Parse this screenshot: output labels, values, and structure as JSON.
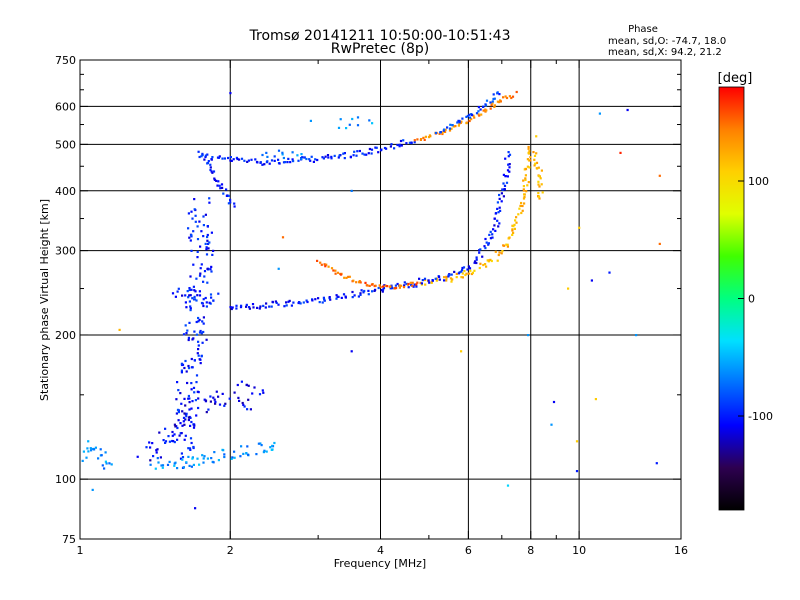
{
  "chart_data": {
    "type": "scatter",
    "title": "Tromsø 20141211 10:50:00-10:51:43",
    "subtitle": "RwPretec (8p)",
    "xlabel": "Frequency [MHz]",
    "ylabel": "Stationary phase Virtual Height [km]",
    "x_scale": "log",
    "y_scale": "log",
    "xlim": [
      1,
      16
    ],
    "ylim": [
      75,
      750
    ],
    "x_ticks": [
      1,
      2,
      4,
      6,
      8,
      10,
      16
    ],
    "x_tick_labels": [
      "1",
      "2",
      "4",
      "6",
      "8",
      "10",
      "16"
    ],
    "x_minor_ticks": [
      3,
      5,
      7,
      9
    ],
    "y_ticks": [
      75,
      100,
      200,
      300,
      400,
      500,
      600,
      750
    ],
    "y_tick_labels": [
      "75",
      "100",
      "200",
      "300",
      "400",
      "500",
      "600",
      "750"
    ],
    "y_minor_ticks": [
      150,
      250,
      350,
      450,
      550,
      650,
      700
    ],
    "grid": true,
    "stats": {
      "heading": "Phase",
      "line_o": "mean, sd,O: -74.7, 18.0",
      "line_x": "mean, sd,X:  94.2, 21.2"
    },
    "colorbar": {
      "label": "[deg]",
      "range": [
        -180,
        180
      ],
      "ticks": [
        100,
        0,
        -100
      ],
      "tick_labels": [
        "100",
        "0",
        "-100"
      ],
      "colors": [
        "#000000",
        "#2d0050",
        "#0000ff",
        "#0070ff",
        "#00e0ff",
        "#00ff80",
        "#40ff00",
        "#e0ff00",
        "#ffd000",
        "#ff8000",
        "#ff0000"
      ]
    },
    "traces": [
      {
        "name": "",
        "phase": -100,
        "density": 2,
        "spread": 3,
        "points": [
          [
            1.72,
            480
          ],
          [
            1.8,
            470
          ],
          [
            2.0,
            465
          ],
          [
            2.3,
            460
          ],
          [
            2.7,
            462
          ],
          [
            3.2,
            470
          ],
          [
            3.7,
            480
          ],
          [
            4.2,
            495
          ],
          [
            4.7,
            510
          ]
        ]
      },
      {
        "name": "",
        "phase": -100,
        "density": 2,
        "spread": 3,
        "points": [
          [
            1.75,
            475
          ],
          [
            1.85,
            440
          ],
          [
            1.9,
            410
          ],
          [
            2.0,
            380
          ],
          [
            2.05,
            370
          ]
        ]
      },
      {
        "name": "",
        "phase": 140,
        "density": 2,
        "spread": 2,
        "points": [
          [
            4.7,
            510
          ],
          [
            5.3,
            530
          ],
          [
            6.0,
            560
          ],
          [
            6.5,
            590
          ],
          [
            7.0,
            620
          ],
          [
            7.5,
            640
          ]
        ]
      },
      {
        "name": "",
        "phase": -90,
        "density": 2,
        "spread": 2,
        "points": [
          [
            5.2,
            530
          ],
          [
            5.8,
            560
          ],
          [
            6.3,
            590
          ],
          [
            6.8,
            630
          ],
          [
            7.0,
            645
          ]
        ]
      },
      {
        "name": "",
        "phase": -100,
        "density": 2,
        "spread": 3,
        "points": [
          [
            2.0,
            228
          ],
          [
            2.3,
            230
          ],
          [
            2.8,
            234
          ],
          [
            3.3,
            240
          ],
          [
            3.8,
            247
          ],
          [
            4.3,
            253
          ],
          [
            4.8,
            256
          ]
        ]
      },
      {
        "name": "",
        "phase": 150,
        "density": 2,
        "spread": 2,
        "points": [
          [
            3.0,
            285
          ],
          [
            3.3,
            268
          ],
          [
            3.7,
            256
          ],
          [
            4.2,
            252
          ],
          [
            4.8,
            256
          ]
        ]
      },
      {
        "name": "",
        "phase": 120,
        "density": 2,
        "spread": 3,
        "points": [
          [
            4.8,
            256
          ],
          [
            5.5,
            262
          ],
          [
            6.2,
            272
          ],
          [
            6.8,
            290
          ],
          [
            7.3,
            320
          ],
          [
            7.6,
            360
          ],
          [
            7.8,
            410
          ],
          [
            7.9,
            460
          ],
          [
            7.95,
            500
          ]
        ]
      },
      {
        "name": "",
        "phase": -100,
        "density": 2,
        "spread": 3,
        "points": [
          [
            4.8,
            258
          ],
          [
            5.5,
            265
          ],
          [
            6.0,
            275
          ],
          [
            6.4,
            300
          ],
          [
            6.8,
            340
          ],
          [
            7.0,
            390
          ],
          [
            7.15,
            440
          ],
          [
            7.2,
            480
          ]
        ]
      },
      {
        "name": "",
        "phase": 120,
        "density": 2,
        "spread": 3,
        "points": [
          [
            8.1,
            480
          ],
          [
            8.3,
            450
          ],
          [
            8.4,
            410
          ],
          [
            8.2,
            380
          ]
        ]
      },
      {
        "name": "",
        "phase": -100,
        "density": 3,
        "spread": 12,
        "points": [
          [
            1.6,
            110
          ],
          [
            1.65,
            150
          ],
          [
            1.7,
            200
          ],
          [
            1.75,
            260
          ],
          [
            1.75,
            320
          ],
          [
            1.72,
            380
          ]
        ]
      },
      {
        "name": "",
        "phase": -110,
        "density": 2,
        "spread": 10,
        "points": [
          [
            1.35,
            110
          ],
          [
            1.5,
            125
          ],
          [
            1.65,
            140
          ],
          [
            1.9,
            150
          ],
          [
            2.2,
            145
          ]
        ]
      },
      {
        "name": "",
        "phase": -60,
        "density": 2,
        "spread": 6,
        "points": [
          [
            1.4,
            108
          ],
          [
            1.6,
            108
          ],
          [
            1.8,
            110
          ],
          [
            2.1,
            115
          ],
          [
            2.5,
            118
          ]
        ]
      },
      {
        "name": "",
        "phase": -60,
        "density": 2,
        "spread": 5,
        "points": [
          [
            1.0,
            110
          ],
          [
            1.05,
            118
          ],
          [
            1.1,
            112
          ],
          [
            1.15,
            104
          ]
        ]
      },
      {
        "name": "",
        "phase": -100,
        "density": 2,
        "spread": 6,
        "points": [
          [
            1.55,
            245
          ],
          [
            1.7,
            240
          ],
          [
            1.9,
            238
          ]
        ]
      },
      {
        "name": "",
        "phase": -60,
        "density": 1,
        "spread": 6,
        "points": [
          [
            3.3,
            550
          ],
          [
            3.6,
            555
          ],
          [
            3.9,
            550
          ]
        ]
      },
      {
        "name": "",
        "phase": -70,
        "density": 1,
        "spread": 5,
        "points": [
          [
            2.3,
            470
          ],
          [
            2.6,
            480
          ],
          [
            2.9,
            470
          ]
        ]
      },
      {
        "name": "",
        "phase": -110,
        "density": 1,
        "spread": 4,
        "points": [
          [
            2.05,
            160
          ],
          [
            2.2,
            155
          ],
          [
            2.4,
            150
          ]
        ]
      }
    ],
    "scatter_points": [
      {
        "x": 2.0,
        "y": 640,
        "phase": -110
      },
      {
        "x": 2.55,
        "y": 320,
        "phase": 150
      },
      {
        "x": 1.2,
        "y": 205,
        "phase": 120
      },
      {
        "x": 1.7,
        "y": 87,
        "phase": -110
      },
      {
        "x": 1.06,
        "y": 95,
        "phase": -60
      },
      {
        "x": 2.9,
        "y": 560,
        "phase": -60
      },
      {
        "x": 7.2,
        "y": 97,
        "phase": -40
      },
      {
        "x": 8.9,
        "y": 145,
        "phase": -110
      },
      {
        "x": 9.9,
        "y": 104,
        "phase": -100
      },
      {
        "x": 9.9,
        "y": 120,
        "phase": 110
      },
      {
        "x": 12.5,
        "y": 590,
        "phase": -110
      },
      {
        "x": 13.0,
        "y": 200,
        "phase": -60
      },
      {
        "x": 14.5,
        "y": 430,
        "phase": 150
      },
      {
        "x": 14.5,
        "y": 310,
        "phase": 150
      },
      {
        "x": 14.3,
        "y": 108,
        "phase": -100
      },
      {
        "x": 12.1,
        "y": 480,
        "phase": 170
      },
      {
        "x": 11.5,
        "y": 270,
        "phase": -100
      },
      {
        "x": 10.8,
        "y": 147,
        "phase": 110
      },
      {
        "x": 10.0,
        "y": 335,
        "phase": 110
      },
      {
        "x": 9.5,
        "y": 250,
        "phase": 110
      },
      {
        "x": 8.2,
        "y": 520,
        "phase": 110
      },
      {
        "x": 5.8,
        "y": 185,
        "phase": 110
      },
      {
        "x": 3.5,
        "y": 185,
        "phase": -110
      },
      {
        "x": 3.5,
        "y": 400,
        "phase": -70
      },
      {
        "x": 7.9,
        "y": 200,
        "phase": -60
      },
      {
        "x": 11.0,
        "y": 580,
        "phase": -60
      },
      {
        "x": 8.8,
        "y": 130,
        "phase": -60
      },
      {
        "x": 10.6,
        "y": 260,
        "phase": -110
      },
      {
        "x": 2.5,
        "y": 275,
        "phase": -60
      }
    ]
  }
}
